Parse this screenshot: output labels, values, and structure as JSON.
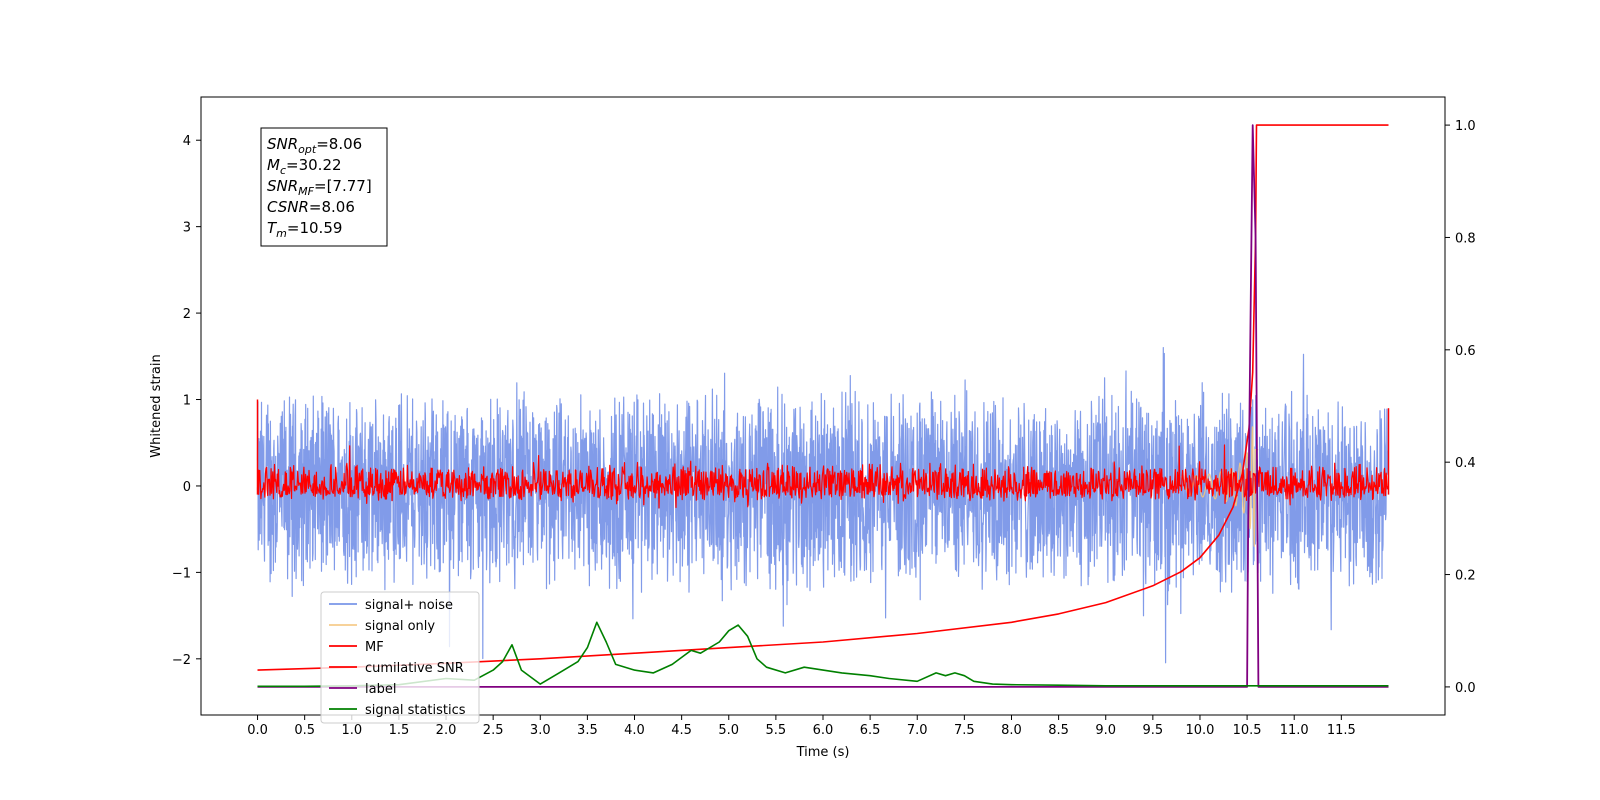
{
  "chart_data": {
    "type": "line",
    "xlabel": "Time (s)",
    "ylabel": "Whitened strain",
    "xlim": [
      -0.6,
      12.6
    ],
    "ylim": [
      -2.65,
      4.5
    ],
    "y2lim": [
      -0.05,
      1.05
    ],
    "x_ticks": [
      "0.0",
      "0.5",
      "1.0",
      "1.5",
      "2.0",
      "2.5",
      "3.0",
      "3.5",
      "4.0",
      "4.5",
      "5.0",
      "5.5",
      "6.0",
      "6.5",
      "7.0",
      "7.5",
      "8.0",
      "8.5",
      "9.0",
      "9.5",
      "10.0",
      "10.5",
      "11.0",
      "11.5"
    ],
    "y_ticks": [
      "−2",
      "−1",
      "0",
      "1",
      "2",
      "3",
      "4"
    ],
    "y2_ticks": [
      "0.0",
      "0.2",
      "0.4",
      "0.6",
      "0.8",
      "1.0"
    ],
    "grid": false,
    "legend_position": "lower-left",
    "info_box": {
      "lines": [
        {
          "base": "SNR",
          "sub": "opt",
          "value": "=8.06"
        },
        {
          "base": "M",
          "sub": "c",
          "value": "=30.22"
        },
        {
          "base": "SNR",
          "sub": "MF",
          "value": "=[7.77]"
        },
        {
          "base": "CSNR",
          "sub": "",
          "value": "=8.06"
        },
        {
          "base": "T",
          "sub": "m",
          "value": "=10.59"
        }
      ]
    },
    "series": [
      {
        "name": "signal+ noise",
        "color": "#7a96e8",
        "axis": "left",
        "kind": "noise",
        "center": 0.0,
        "amp_up": 1.15,
        "amp_down": 1.3
      },
      {
        "name": "signal only",
        "color": "#f5c77e",
        "axis": "left",
        "kind": "chirp",
        "t_merge": 10.59
      },
      {
        "name": "MF",
        "color": "#ff0000",
        "axis": "left",
        "kind": "noise",
        "center": 0.0,
        "amp_up": 0.28,
        "amp_down": 0.18
      },
      {
        "name": "cumilative SNR",
        "color": "#ff0000",
        "axis": "right",
        "x": [
          0.0,
          1.0,
          2.0,
          3.0,
          4.0,
          5.0,
          6.0,
          7.0,
          8.0,
          8.5,
          9.0,
          9.5,
          9.8,
          10.0,
          10.2,
          10.35,
          10.45,
          10.52,
          10.56,
          10.59,
          10.6,
          11.0,
          12.0
        ],
        "values": [
          0.03,
          0.035,
          0.042,
          0.05,
          0.06,
          0.07,
          0.08,
          0.095,
          0.115,
          0.13,
          0.15,
          0.18,
          0.205,
          0.23,
          0.27,
          0.32,
          0.38,
          0.46,
          0.56,
          0.8,
          1.0,
          1.0,
          1.0
        ]
      },
      {
        "name": "label",
        "color": "#800080",
        "axis": "right",
        "x": [
          0.0,
          10.5,
          10.51,
          10.56,
          10.59,
          10.62,
          10.63,
          12.0
        ],
        "values": [
          0.0,
          0.0,
          0.25,
          1.0,
          0.8,
          0.0,
          0.0,
          0.0
        ]
      },
      {
        "name": "signal statistics",
        "color": "#008000",
        "axis": "right",
        "x": [
          0.0,
          0.5,
          1.0,
          1.5,
          2.0,
          2.3,
          2.5,
          2.6,
          2.7,
          2.8,
          3.0,
          3.2,
          3.4,
          3.5,
          3.6,
          3.7,
          3.8,
          4.0,
          4.2,
          4.4,
          4.6,
          4.7,
          4.9,
          5.0,
          5.1,
          5.2,
          5.3,
          5.4,
          5.6,
          5.8,
          6.0,
          6.2,
          6.5,
          6.7,
          7.0,
          7.2,
          7.3,
          7.4,
          7.5,
          7.6,
          7.8,
          8.0,
          8.5,
          9.0,
          10.0,
          11.0,
          12.0
        ],
        "values": [
          0.001,
          0.001,
          0.002,
          0.004,
          0.015,
          0.012,
          0.03,
          0.045,
          0.075,
          0.03,
          0.005,
          0.025,
          0.045,
          0.07,
          0.115,
          0.08,
          0.04,
          0.03,
          0.025,
          0.04,
          0.065,
          0.06,
          0.08,
          0.1,
          0.11,
          0.09,
          0.05,
          0.035,
          0.025,
          0.035,
          0.03,
          0.025,
          0.02,
          0.015,
          0.01,
          0.025,
          0.02,
          0.025,
          0.02,
          0.01,
          0.005,
          0.004,
          0.003,
          0.002,
          0.002,
          0.002,
          0.002
        ]
      }
    ]
  }
}
